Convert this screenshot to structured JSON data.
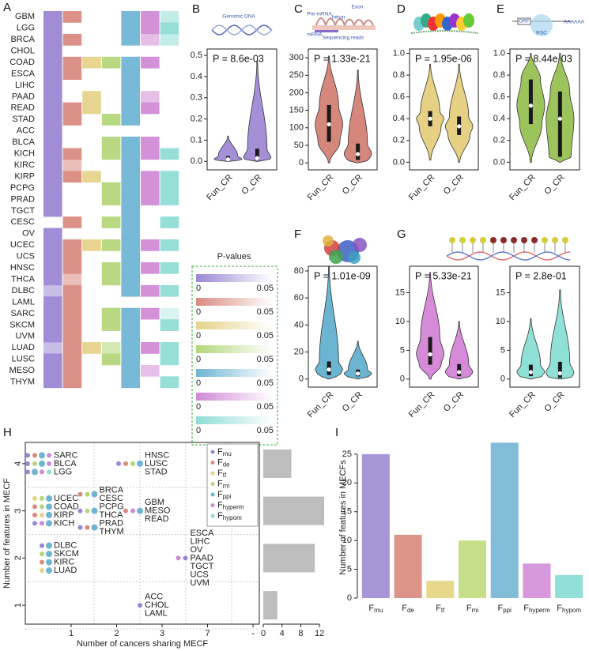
{
  "chart_data": [
    {
      "type": "heatmap",
      "panel_label": "A",
      "rows": [
        "GBM",
        "LGG",
        "BRCA",
        "CHOL",
        "COAD",
        "ESCA",
        "LIHC",
        "PAAD",
        "READ",
        "STAD",
        "ACC",
        "BLCA",
        "KICH",
        "KIRC",
        "KIRP",
        "PCPG",
        "PRAD",
        "TGCT",
        "CESC",
        "OV",
        "UCEC",
        "UCS",
        "HNSC",
        "THCA",
        "DLBC",
        "LAML",
        "SARC",
        "SKCM",
        "UVM",
        "LUAD",
        "LUSC",
        "MESO",
        "THYM"
      ],
      "colors": [
        "#9b86d3",
        "#d98a80",
        "#e6d28a",
        "#b5d67a",
        "#6fb5d3",
        "#cf8ad6",
        "#8fdcd6"
      ],
      "values": [
        [
          0.004,
          0.004,
          null,
          null,
          0.004,
          0.004,
          0.03
        ],
        [
          0.004,
          null,
          null,
          null,
          0.004,
          0.004,
          0.004
        ],
        [
          0.004,
          0.004,
          null,
          null,
          0.004,
          0.03,
          0.03
        ],
        [
          0.004,
          null,
          null,
          null,
          null,
          null,
          null
        ],
        [
          0.004,
          0.004,
          0.004,
          0.004,
          0.004,
          0.004,
          null
        ],
        [
          0.004,
          0.004,
          null,
          null,
          0.004,
          null,
          null
        ],
        [
          0.004,
          null,
          null,
          null,
          0.004,
          null,
          null
        ],
        [
          0.004,
          null,
          0.004,
          null,
          0.004,
          0.03,
          null
        ],
        [
          0.004,
          0.004,
          0.004,
          null,
          0.004,
          0.004,
          null
        ],
        [
          0.004,
          0.004,
          null,
          0.004,
          0.004,
          null,
          null
        ],
        [
          0.004,
          null,
          null,
          null,
          null,
          null,
          null
        ],
        [
          0.004,
          null,
          null,
          0.004,
          0.004,
          0.004,
          null
        ],
        [
          0.004,
          0.004,
          null,
          0.004,
          0.004,
          0.004,
          0.004
        ],
        [
          0.004,
          0.03,
          null,
          null,
          0.004,
          null,
          null
        ],
        [
          0.004,
          0.004,
          0.004,
          null,
          0.004,
          0.004,
          0.004
        ],
        [
          0.004,
          null,
          null,
          0.004,
          0.004,
          0.004,
          0.004
        ],
        [
          0.004,
          null,
          null,
          0.004,
          0.004,
          0.004,
          0.004
        ],
        [
          0.004,
          null,
          null,
          null,
          0.004,
          null,
          null
        ],
        [
          null,
          0.004,
          null,
          0.004,
          0.004,
          null,
          0.004
        ],
        [
          0.004,
          null,
          null,
          null,
          0.004,
          null,
          null
        ],
        [
          0.004,
          0.004,
          0.004,
          0.004,
          0.004,
          0.004,
          0.004
        ],
        [
          0.004,
          0.004,
          null,
          null,
          0.004,
          null,
          null
        ],
        [
          0.004,
          0.004,
          null,
          0.004,
          0.004,
          0.004,
          0.004
        ],
        [
          0.004,
          0.03,
          null,
          0.004,
          0.004,
          null,
          null
        ],
        [
          0.03,
          0.004,
          null,
          null,
          0.004,
          0.004,
          0.004
        ],
        [
          0.004,
          0.004,
          null,
          null,
          null,
          null,
          null
        ],
        [
          0.004,
          0.004,
          null,
          0.004,
          0.004,
          0.004,
          0.045
        ],
        [
          0.004,
          0.004,
          null,
          0.004,
          0.004,
          null,
          0.004
        ],
        [
          0.004,
          0.004,
          null,
          null,
          0.004,
          null,
          null
        ],
        [
          0.03,
          0.004,
          0.004,
          0.03,
          0.004,
          0.004,
          0.004
        ],
        [
          0.004,
          0.004,
          null,
          0.004,
          0.004,
          null,
          0.004
        ],
        [
          0.004,
          0.004,
          null,
          null,
          0.004,
          0.03,
          null
        ],
        [
          0.004,
          0.004,
          null,
          null,
          0.004,
          null,
          0.004
        ]
      ],
      "legend_title": "P-values",
      "legend_range": [
        0,
        0.05
      ]
    },
    {
      "type": "violin",
      "panel_label": "B",
      "icon_labels": [
        "Genomic DNA"
      ],
      "annotation": "P = 8.6e-03",
      "categories": [
        "Fun_CR",
        "O_CR"
      ],
      "color": "#a590d8",
      "ylim": [
        -0.04,
        0.53
      ],
      "yticks": [
        {
          "value": 0,
          "label": "0.0"
        },
        0.1,
        0.2,
        0.3,
        0.4,
        0.5
      ],
      "stats": {
        "min": [
          0,
          0
        ],
        "q1": [
          0.005,
          0.005
        ],
        "median": [
          0.01,
          0.015
        ],
        "q3": [
          0.025,
          0.06
        ],
        "max": [
          0.12,
          0.47
        ]
      }
    },
    {
      "type": "violin",
      "panel_label": "C",
      "icon_labels": [
        "Pre-mRNA",
        "Intron",
        "Exon",
        "mRNA",
        "Sequencing reads"
      ],
      "annotation": "P = 1.33e-21",
      "categories": [
        "Fun_CR",
        "O_CR"
      ],
      "color": "#d6877c",
      "ylim": [
        -20,
        325
      ],
      "yticks": [
        0,
        50,
        100,
        150,
        200,
        250,
        300
      ],
      "stats": {
        "min": [
          0,
          0
        ],
        "q1": [
          60,
          8
        ],
        "median": [
          110,
          25
        ],
        "q3": [
          165,
          55
        ],
        "max": [
          305,
          265
        ]
      }
    },
    {
      "type": "violin",
      "panel_label": "D",
      "annotation": "P = 1.95e-06",
      "categories": [
        "Fun_CR",
        "O_CR"
      ],
      "color": "#e6d084",
      "ylim": [
        -0.07,
        1.04
      ],
      "yticks": [
        {
          "value": 0,
          "label": "0.0"
        },
        0.2,
        0.4,
        0.6,
        0.8,
        {
          "value": 1,
          "label": "1.0"
        }
      ],
      "stats": {
        "min": [
          0.02,
          0
        ],
        "q1": [
          0.33,
          0.25
        ],
        "median": [
          0.4,
          0.33
        ],
        "q3": [
          0.47,
          0.42
        ],
        "max": [
          0.9,
          0.9
        ]
      }
    },
    {
      "type": "violin",
      "panel_label": "E",
      "icon_labels": [
        "ORF",
        "RSC",
        "AAAAAA"
      ],
      "annotation": "P = 8.44e-03",
      "categories": [
        "Fun_CR",
        "O_CR"
      ],
      "color": "#9dc45c",
      "ylim": [
        -0.07,
        1.04
      ],
      "yticks": [
        {
          "value": 0,
          "label": "0.0"
        },
        0.2,
        0.4,
        0.6,
        0.8,
        {
          "value": 1,
          "label": "1.0"
        }
      ],
      "stats": {
        "min": [
          0,
          0
        ],
        "q1": [
          0.35,
          0.05
        ],
        "median": [
          0.52,
          0.4
        ],
        "q3": [
          0.76,
          0.65
        ],
        "max": [
          1,
          1
        ]
      }
    },
    {
      "type": "violin",
      "panel_label": "F",
      "annotation": "P = 1.01e-09",
      "categories": [
        "Fun_CR",
        "O_CR"
      ],
      "color": "#6bb4d2",
      "ylim": [
        -6,
        83.5
      ],
      "yticks": [
        0,
        20,
        40,
        60,
        80
      ],
      "stats": {
        "min": [
          0,
          0
        ],
        "q1": [
          3,
          2
        ],
        "median": [
          7,
          4
        ],
        "q3": [
          13,
          7
        ],
        "max": [
          83,
          28
        ]
      }
    },
    {
      "type": "violin",
      "panel_label": "G",
      "annotation": "P = 5.33e-21",
      "categories": [
        "Fun_CR",
        "O_CR"
      ],
      "color": "#d58bd8",
      "ylim": [
        -1.4,
        19.6
      ],
      "yticks": [
        0,
        5,
        10,
        15
      ],
      "stats": {
        "min": [
          0,
          0
        ],
        "q1": [
          2.5,
          0.5
        ],
        "median": [
          4.3,
          1.2
        ],
        "q3": [
          7.3,
          2.6
        ],
        "max": [
          18.5,
          10
        ]
      }
    },
    {
      "type": "violin",
      "annotation": "P = 2.8e-01",
      "categories": [
        "Fun_CR",
        "O_CR"
      ],
      "color": "#8fe0d7",
      "ylim": [
        -1.4,
        19.6
      ],
      "yticks": [
        0,
        5,
        10,
        15
      ],
      "stats": {
        "min": [
          0,
          0
        ],
        "q1": [
          0.5,
          0.2
        ],
        "median": [
          1.2,
          1
        ],
        "q3": [
          2.5,
          3
        ],
        "max": [
          10.5,
          15.5
        ]
      }
    },
    {
      "type": "dot",
      "panel_label": "H",
      "x_label": "Number of cancers sharing MECF",
      "y_label": "Number of features in MECF",
      "categories": [
        "1",
        "2",
        "3",
        "7",
        "-"
      ],
      "ylim": [
        0.6,
        4.45
      ],
      "yticks": [
        1,
        2,
        3,
        4
      ],
      "legend": [
        {
          "name": "Fmu",
          "color": "#9b86d3"
        },
        {
          "name": "Fde",
          "color": "#d98a80"
        },
        {
          "name": "Ftf",
          "color": "#e6d28a"
        },
        {
          "name": "Fmi",
          "color": "#b5d67a"
        },
        {
          "name": "Fppi",
          "color": "#6fb5d3"
        },
        {
          "name": "Fhyperm",
          "color": "#cf8ad6"
        },
        {
          "name": "Fhypom",
          "color": "#8fdcd6"
        }
      ],
      "groups": [
        {
          "x": "1",
          "y": 4,
          "members": [
            {
              "cancers": [
                "SARC"
              ],
              "features": [
                0,
                1,
                4,
                5
              ]
            },
            {
              "cancers": [
                "BLCA"
              ],
              "features": [
                0,
                3,
                4,
                5
              ]
            },
            {
              "cancers": [
                "LGG"
              ],
              "features": [
                0,
                4,
                5,
                6
              ]
            }
          ]
        },
        {
          "x": "3",
          "y": 4,
          "members": [
            {
              "cancers": [
                "HNSC",
                "LUSC",
                "STAD"
              ],
              "features": [
                0,
                1,
                3,
                4
              ]
            }
          ]
        },
        {
          "x": "1",
          "y": 3,
          "members": [
            {
              "cancers": [
                "UCEC"
              ],
              "features": [
                2,
                3,
                4
              ]
            },
            {
              "cancers": [
                "COAD"
              ],
              "features": [
                1,
                3,
                4
              ]
            },
            {
              "cancers": [
                "KIRP"
              ],
              "features": [
                1,
                2,
                4
              ]
            },
            {
              "cancers": [
                "KICH"
              ],
              "features": [
                0,
                5,
                4
              ]
            }
          ]
        },
        {
          "x": "2",
          "y": 3,
          "members": [
            {
              "cancers": [
                "BRCA",
                "CESC"
              ],
              "features": [
                1,
                3,
                4
              ]
            },
            {
              "cancers": [
                "PCPG",
                "THCA"
              ],
              "features": [
                0,
                3,
                4
              ]
            },
            {
              "cancers": [
                "PRAD",
                "THYM"
              ],
              "features": [
                0,
                1,
                4
              ]
            }
          ]
        },
        {
          "x": "3",
          "y": 3,
          "members": [
            {
              "cancers": [
                "GBM",
                "MESO",
                "READ"
              ],
              "features": [
                1,
                5,
                4
              ]
            }
          ]
        },
        {
          "x": "1",
          "y": 2,
          "members": [
            {
              "cancers": [
                "DLBC"
              ],
              "features": [
                0,
                4
              ]
            },
            {
              "cancers": [
                "SKCM"
              ],
              "features": [
                3,
                4
              ]
            },
            {
              "cancers": [
                "KIRC"
              ],
              "features": [
                1,
                4
              ]
            },
            {
              "cancers": [
                "LUAD"
              ],
              "features": [
                2,
                4
              ]
            }
          ]
        },
        {
          "x": "7",
          "y": 2,
          "members": [
            {
              "cancers": [
                "ESCA",
                "LIHC",
                "OV",
                "PAAD",
                "TGCT",
                "UCS",
                "UVM"
              ],
              "features": [
                5,
                0
              ]
            }
          ]
        },
        {
          "x": "3",
          "y": 1,
          "members": [
            {
              "cancers": [
                "ACC",
                "CHOL",
                "LAML"
              ],
              "features": [
                0
              ]
            }
          ]
        }
      ]
    },
    {
      "type": "bar",
      "orientation": "horizontal",
      "y": [
        4,
        3,
        2,
        1
      ],
      "values": [
        6,
        13,
        11,
        3
      ],
      "color": "#bdbdbd",
      "xlim": [
        0,
        13
      ],
      "xticks": [
        0,
        4,
        8,
        12
      ],
      "ylim": [
        0.6,
        4.45
      ]
    },
    {
      "type": "bar",
      "panel_label": "I",
      "y_label": "Number of features in MECFs",
      "categories": [
        "Fmu",
        "Fde",
        "Ftf",
        "Fmi",
        "Fppi",
        "Fhyperm",
        "Fhypom"
      ],
      "values": [
        25,
        11,
        3,
        10,
        27,
        6,
        4
      ],
      "colors": [
        "#a795d8",
        "#dc9488",
        "#e8d88c",
        "#c6e08a",
        "#82bcd8",
        "#d898dc",
        "#90e0d8"
      ],
      "ylim": [
        0,
        28
      ],
      "yticks": [
        0,
        5,
        10,
        15,
        20,
        25
      ]
    }
  ]
}
